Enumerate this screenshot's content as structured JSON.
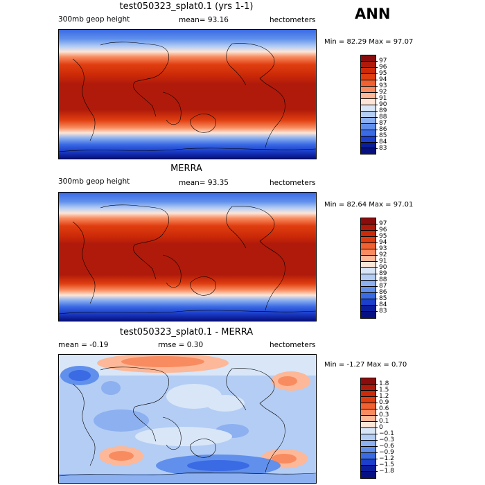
{
  "season": "ANN",
  "panels": [
    {
      "title": "test050323_splat0.1 (yrs 1-1)",
      "left_label": "300mb geop height",
      "mid_label": "mean=  93.16",
      "right_label": "hectometers",
      "minmax": "Min =  82.29 Max =  97.07",
      "colorbar": {
        "labels": [
          "97",
          "96",
          "95",
          "94",
          "93",
          "92",
          "91",
          "90",
          "89",
          "88",
          "87",
          "86",
          "85",
          "84",
          "83"
        ],
        "colors": [
          "#8b0c0c",
          "#b01a0a",
          "#cc2a08",
          "#e03e10",
          "#f06030",
          "#f88c60",
          "#fcb898",
          "#fde6d8",
          "#d8e6f8",
          "#b4cdf4",
          "#8cb0f0",
          "#6090ec",
          "#3a6ae4",
          "#1c40cc",
          "#0a1e9c",
          "#061080"
        ]
      }
    },
    {
      "title": "MERRA",
      "left_label": "300mb geop height",
      "mid_label": "mean=  93.35",
      "right_label": "hectometers",
      "minmax": "Min =  82.64 Max =  97.01",
      "colorbar": {
        "labels": [
          "97",
          "96",
          "95",
          "94",
          "93",
          "92",
          "91",
          "90",
          "89",
          "88",
          "87",
          "86",
          "85",
          "84",
          "83"
        ],
        "colors": [
          "#8b0c0c",
          "#b01a0a",
          "#cc2a08",
          "#e03e10",
          "#f06030",
          "#f88c60",
          "#fcb898",
          "#fde6d8",
          "#d8e6f8",
          "#b4cdf4",
          "#8cb0f0",
          "#6090ec",
          "#3a6ae4",
          "#1c40cc",
          "#0a1e9c",
          "#061080"
        ]
      }
    },
    {
      "title": "test050323_splat0.1 - MERRA",
      "left_label": "mean =  -0.19",
      "mid_label": "rmse =   0.30",
      "right_label": "hectometers",
      "minmax": "Min =  -1.27 Max =   0.70",
      "colorbar": {
        "labels": [
          "1.8",
          "1.5",
          "1.2",
          "0.9",
          "0.6",
          "0.3",
          "0.1",
          "0",
          "−0.1",
          "−0.3",
          "−0.6",
          "−0.9",
          "−1.2",
          "−1.5",
          "−1.8"
        ],
        "colors": [
          "#8b0c0c",
          "#b01a0a",
          "#cc2a08",
          "#e03e10",
          "#f06030",
          "#f88c60",
          "#fcb898",
          "#fde6d8",
          "#d8e6f8",
          "#b4cdf4",
          "#8cb0f0",
          "#6090ec",
          "#3a6ae4",
          "#1c40cc",
          "#0a1e9c",
          "#061080"
        ]
      }
    }
  ]
}
